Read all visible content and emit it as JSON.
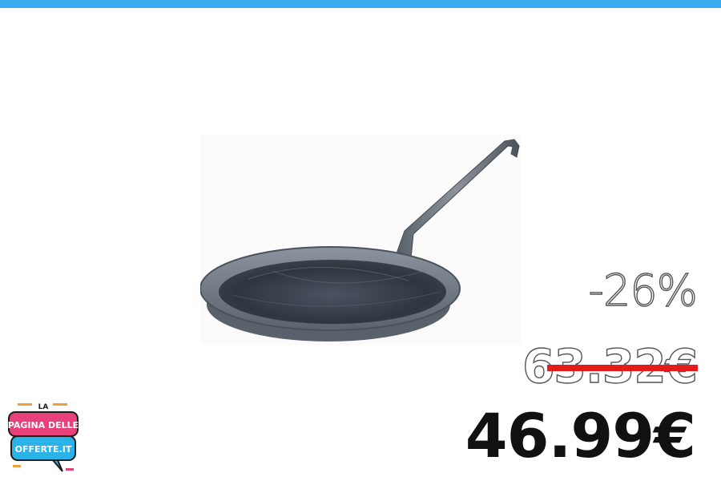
{
  "header": {
    "bar_color": "#3aaaf0"
  },
  "product": {
    "image_icon": "frying-pan-icon"
  },
  "pricing": {
    "discount": "-26%",
    "old_price": "63.32€",
    "new_price": "46.99€",
    "strike_color": "#e41b1b"
  },
  "logo": {
    "line1": "LA",
    "line2": "PAGINA DELLE",
    "line3": "OFFERTE.IT"
  }
}
